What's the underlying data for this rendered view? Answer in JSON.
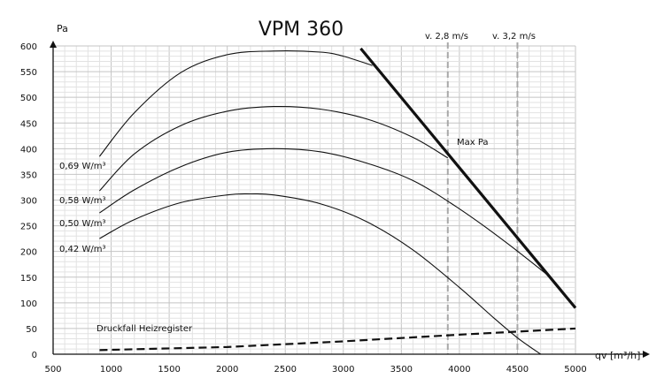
{
  "chart_data": {
    "type": "line",
    "title": "VPM 360",
    "ylabel": "Pa",
    "xlabel": "qv [m³/h]",
    "xlim": [
      500,
      5000
    ],
    "ylim": [
      0,
      600
    ],
    "x_ticks": [
      "500",
      "1000",
      "1500",
      "2000",
      "2500",
      "3000",
      "3500",
      "4000",
      "4500",
      "5000"
    ],
    "y_ticks": [
      "0",
      "50",
      "100",
      "150",
      "200",
      "250",
      "300",
      "350",
      "400",
      "450",
      "500",
      "550",
      "600"
    ],
    "grid": true,
    "series": [
      {
        "name": "0,69 W/m³",
        "style": "thin",
        "x": [
          900,
          1200,
          1600,
          2000,
          2400,
          2800,
          3000,
          3250
        ],
        "y": [
          385,
          470,
          548,
          583,
          590,
          588,
          580,
          562
        ]
      },
      {
        "name": "0,58 W/m³",
        "style": "thin",
        "x": [
          900,
          1200,
          1600,
          2000,
          2400,
          2800,
          3200,
          3600,
          3900
        ],
        "y": [
          318,
          390,
          445,
          473,
          482,
          477,
          458,
          422,
          382
        ]
      },
      {
        "name": "0,50 W/m³",
        "style": "thin",
        "x": [
          900,
          1200,
          1600,
          2000,
          2400,
          2800,
          3200,
          3600,
          4000,
          4400,
          4800
        ],
        "y": [
          275,
          320,
          365,
          393,
          400,
          394,
          372,
          338,
          283,
          218,
          147
        ]
      },
      {
        "name": "0,42 W/m³",
        "style": "thin",
        "x": [
          900,
          1200,
          1600,
          2000,
          2200,
          2400,
          2800,
          3200,
          3600,
          4000,
          4300,
          4500,
          4700
        ],
        "y": [
          225,
          262,
          295,
          310,
          312,
          310,
          293,
          258,
          203,
          130,
          70,
          32,
          0
        ]
      },
      {
        "name": "Max Pa",
        "style": "bold",
        "x": [
          3150,
          5000
        ],
        "y": [
          595,
          90
        ]
      },
      {
        "name": "Druckfall Heizregister",
        "style": "dashed",
        "x": [
          900,
          2000,
          3000,
          4000,
          5000
        ],
        "y": [
          8,
          14,
          25,
          38,
          50
        ]
      }
    ],
    "velocity_lines": [
      {
        "label": "v. 2,8 m/s",
        "x": 3900
      },
      {
        "label": "v. 3,2 m/s",
        "x": 4500
      }
    ],
    "annotations": {
      "max_pa": "Max Pa",
      "curve_labels": [
        "0,69 W/m³",
        "0,58 W/m³",
        "0,50 W/m³",
        "0,42 W/m³"
      ],
      "heater": "Druckfall Heizregister"
    },
    "colors": {
      "line": "#111111",
      "grid": "#d4d4d4",
      "velocity": "#a8a8a8"
    }
  }
}
